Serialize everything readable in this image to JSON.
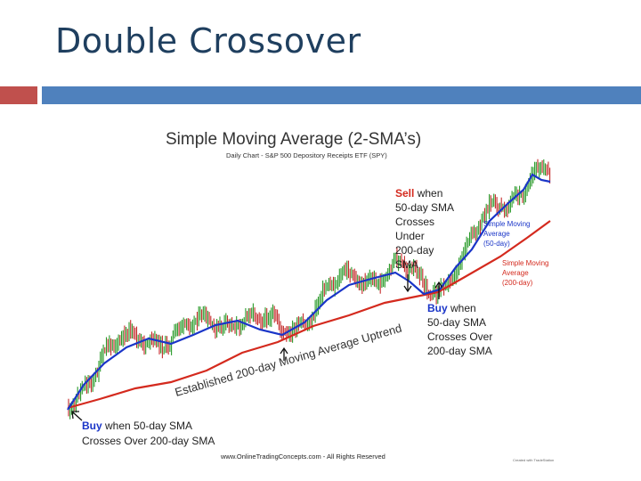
{
  "slide": {
    "title": "Double Crossover",
    "accent_colors": {
      "title": "#1f3f5f",
      "band_left": "#c0504d",
      "band_right": "#4f81bd"
    }
  },
  "chart_data": {
    "type": "line",
    "title": "Simple Moving Average (2-SMA’s)",
    "subtitle": "Daily Chart - S&P 500 Depository Receipts ETF (SPY)",
    "series": [
      {
        "name": "Simple Moving Average (50-day)",
        "color": "#1a35c8"
      },
      {
        "name": "Simple Moving Average (200-day)",
        "color": "#d42a1e"
      }
    ],
    "price_colors": {
      "up": "#2a9a2a",
      "down": "#c42a2a"
    },
    "annotations": {
      "sell_keyword": "Sell",
      "sell_rest": " when",
      "sell_lines": [
        "50-day SMA",
        "Crosses",
        "Under",
        "200-day",
        "SMA"
      ],
      "sma50_label": [
        "Simple Moving",
        "Average",
        "(50-day)"
      ],
      "sma200_label": [
        "Simple Moving",
        "Average",
        "(200-day)"
      ],
      "buy2_keyword": "Buy",
      "buy2_rest": " when",
      "buy2_lines": [
        "50-day SMA",
        "Crosses Over",
        "200-day SMA"
      ],
      "uptrend": "Established 200-day Moving Average Uptrend",
      "buy1_keyword": "Buy",
      "buy1_rest": " when 50-day SMA",
      "buy1_line2": "Crosses Over 200-day SMA"
    },
    "footer": "www.OnlineTradingConcepts.com - All Rights Reserved",
    "watermark": "Created with TradeStation"
  }
}
